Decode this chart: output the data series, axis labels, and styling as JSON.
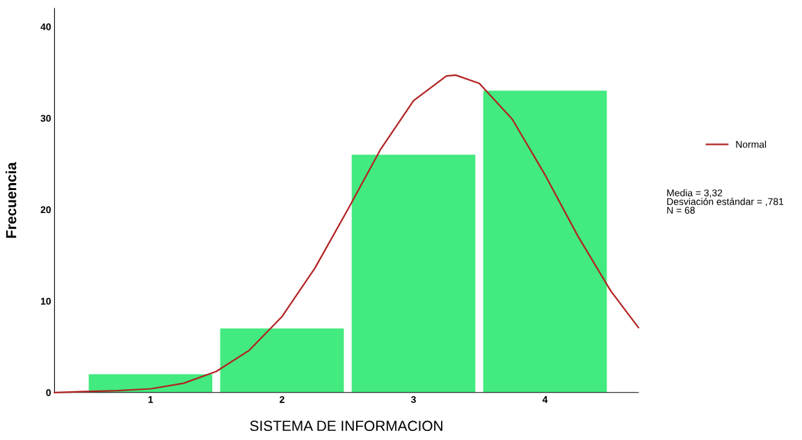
{
  "chart_data": {
    "type": "histogram",
    "xlabel": "SISTEMA DE INFORMACION",
    "ylabel": "Frecuencia",
    "bins": [
      0.5,
      1.5,
      2.5,
      3.5,
      4.5
    ],
    "values": [
      2,
      7,
      26,
      33
    ],
    "color": "#42ea7f",
    "series": [
      {
        "name": "Normal",
        "type": "line",
        "color": "#b22222",
        "x": [
          0.27,
          0.5,
          0.75,
          1.0,
          1.25,
          1.5,
          1.75,
          2.0,
          2.25,
          2.5,
          2.75,
          3.0,
          3.25,
          3.32,
          3.5,
          3.75,
          4.0,
          4.25,
          4.5,
          4.71
        ],
        "values": [
          0.0,
          0.1,
          0.2,
          0.4,
          1.0,
          2.3,
          4.6,
          8.3,
          13.6,
          20.0,
          26.6,
          31.9,
          34.6,
          34.7,
          33.8,
          29.9,
          23.8,
          17.1,
          11.1,
          7.1
        ]
      }
    ],
    "xlim": [
      0.27,
      4.71
    ],
    "ylim": [
      0,
      42
    ],
    "xticks": [
      1,
      2,
      3,
      4
    ],
    "yticks": [
      0,
      10,
      20,
      30,
      40
    ],
    "grid": false,
    "legend": "right",
    "annotations": [
      "Media = 3,32\nDesviación estándar = ,781\nN = 68"
    ]
  }
}
